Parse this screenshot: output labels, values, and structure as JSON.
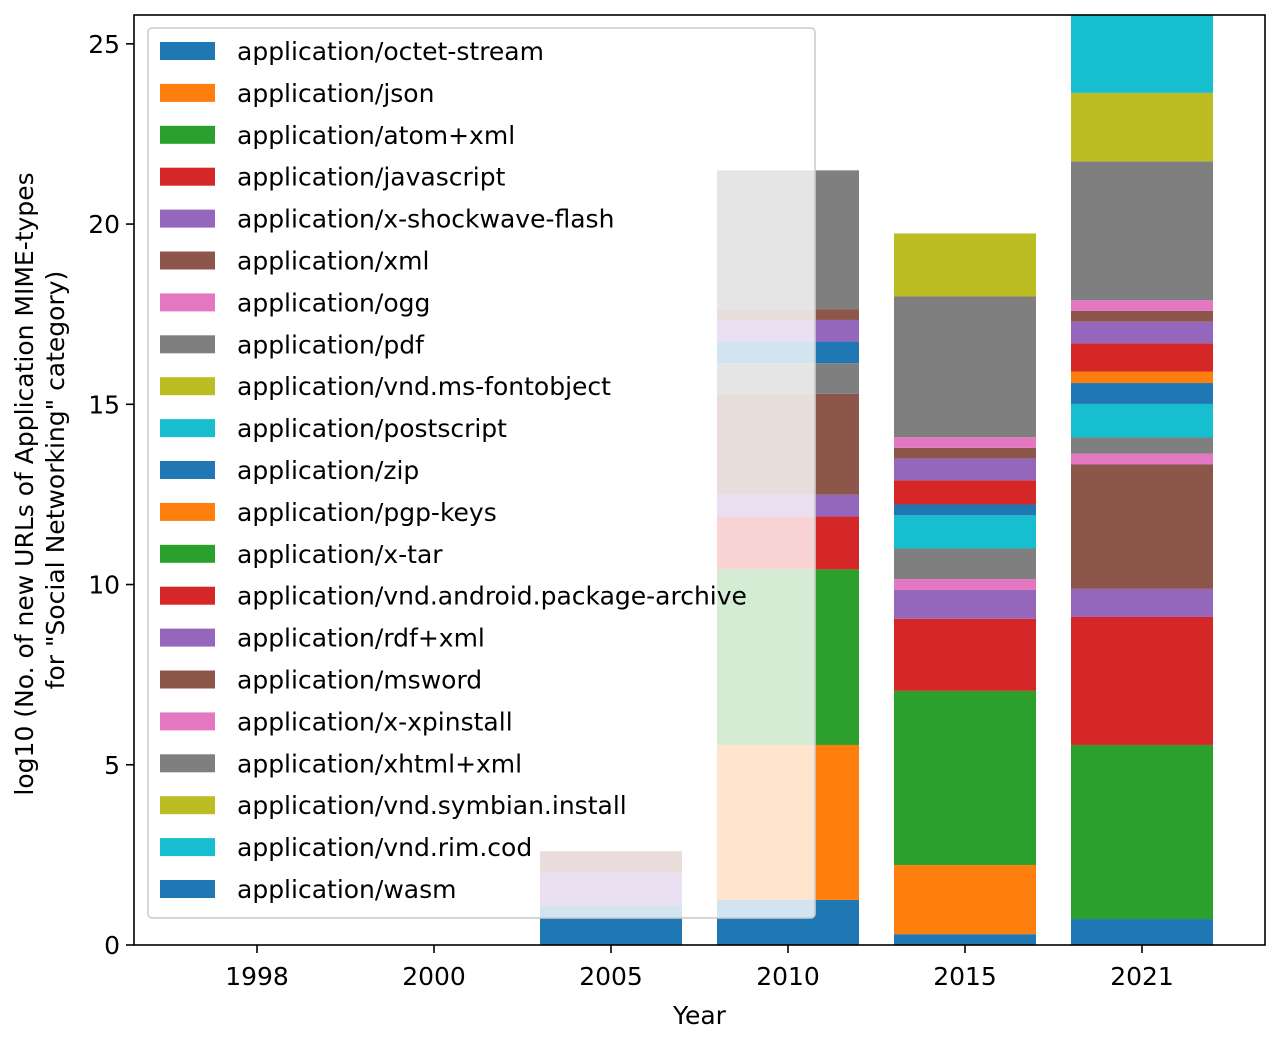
{
  "chart_data": {
    "type": "bar",
    "stacked": true,
    "xlabel": "Year",
    "ylabel_lines": [
      "log10 (No. of new URLs of Application MIME-types",
      "for \"Social Networking\" category)"
    ],
    "categories": [
      "1998",
      "2000",
      "2005",
      "2010",
      "2015",
      "2021"
    ],
    "ylim": [
      0,
      25.8
    ],
    "yticks": [
      0,
      5,
      10,
      15,
      20,
      25
    ],
    "grid": false,
    "legend_position": "upper-left",
    "series": [
      {
        "name": "application/octet-stream",
        "color": "#1f77b4",
        "values": [
          0,
          0,
          1.1,
          1.25,
          0.3,
          0.72
        ]
      },
      {
        "name": "application/json",
        "color": "#ff7f0e",
        "values": [
          0,
          0,
          0,
          4.3,
          1.92,
          0
        ]
      },
      {
        "name": "application/atom+xml",
        "color": "#2ca02c",
        "values": [
          0,
          0,
          0,
          4.87,
          4.83,
          4.83
        ]
      },
      {
        "name": "application/javascript",
        "color": "#d62728",
        "values": [
          0,
          0,
          0,
          1.47,
          2.0,
          3.55
        ]
      },
      {
        "name": "application/x-shockwave-flash",
        "color": "#9467bd",
        "values": [
          0,
          0,
          0.9,
          0.6,
          0.8,
          0.78
        ]
      },
      {
        "name": "application/xml",
        "color": "#8c564b",
        "values": [
          0,
          0,
          0.6,
          2.8,
          0,
          3.45
        ]
      },
      {
        "name": "application/ogg",
        "color": "#e377c2",
        "values": [
          0,
          0,
          0,
          0,
          0.3,
          0.3
        ]
      },
      {
        "name": "application/pdf",
        "color": "#7f7f7f",
        "values": [
          0,
          0,
          0,
          0.85,
          0.85,
          0.45
        ]
      },
      {
        "name": "application/vnd.ms-fontobject",
        "color": "#bcbd22",
        "values": [
          0,
          0,
          0,
          0,
          0,
          0
        ]
      },
      {
        "name": "application/postscript",
        "color": "#17becf",
        "values": [
          0,
          0,
          0,
          0,
          0.92,
          0.93
        ]
      },
      {
        "name": "application/zip",
        "color": "#1f77b4",
        "values": [
          0,
          0,
          0,
          0.6,
          0.3,
          0.58
        ]
      },
      {
        "name": "application/pgp-keys",
        "color": "#ff7f0e",
        "values": [
          0,
          0,
          0,
          0,
          0,
          0.32
        ]
      },
      {
        "name": "application/x-tar",
        "color": "#2ca02c",
        "values": [
          0,
          0,
          0,
          0,
          0,
          0
        ]
      },
      {
        "name": "application/vnd.android.package-archive",
        "color": "#d62728",
        "values": [
          0,
          0,
          0,
          0,
          0.67,
          0.78
        ]
      },
      {
        "name": "application/rdf+xml",
        "color": "#9467bd",
        "values": [
          0,
          0,
          0,
          0.6,
          0.6,
          0.6
        ]
      },
      {
        "name": "application/msword",
        "color": "#8c564b",
        "values": [
          0,
          0,
          0,
          0.3,
          0.3,
          0.3
        ]
      },
      {
        "name": "application/x-xpinstall",
        "color": "#e377c2",
        "values": [
          0,
          0,
          0,
          0,
          0.3,
          0.3
        ]
      },
      {
        "name": "application/xhtml+xml",
        "color": "#7f7f7f",
        "values": [
          0,
          0,
          0,
          3.85,
          3.9,
          3.85
        ]
      },
      {
        "name": "application/vnd.symbian.install",
        "color": "#bcbd22",
        "values": [
          0,
          0,
          0,
          0,
          1.75,
          1.9
        ]
      },
      {
        "name": "application/vnd.rim.cod",
        "color": "#17becf",
        "values": [
          0,
          0,
          0,
          0,
          0,
          2.15
        ]
      },
      {
        "name": "application/wasm",
        "color": "#1f77b4",
        "values": [
          0,
          0,
          0,
          0,
          0,
          0
        ]
      }
    ]
  }
}
